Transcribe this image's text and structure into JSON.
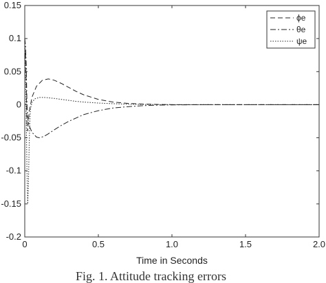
{
  "chart_data": {
    "type": "line",
    "title": "",
    "xlabel": "Time in Seconds",
    "ylabel": "",
    "xlim": [
      0,
      2
    ],
    "ylim": [
      -0.2,
      0.15
    ],
    "xticks": [
      "0",
      "0.5",
      "1.0",
      "1.5",
      "2.0"
    ],
    "yticks": [
      "0.15",
      "0.1",
      "0.05",
      "0",
      "-0.05",
      "-0.1",
      "-0.15",
      "-0.2"
    ],
    "grid": false,
    "legend_position": "top-right",
    "series": [
      {
        "name": "ϕe",
        "style": "dashed",
        "x": [
          0,
          0.005,
          0.01,
          0.015,
          0.02,
          0.03,
          0.05,
          0.08,
          0.12,
          0.16,
          0.2,
          0.25,
          0.3,
          0.35,
          0.4,
          0.5,
          0.6,
          0.7,
          0.8,
          0.9,
          1.0,
          1.2,
          1.5,
          2.0
        ],
        "y": [
          0.07,
          0.08,
          0.03,
          -0.03,
          -0.04,
          -0.01,
          0.012,
          0.028,
          0.037,
          0.039,
          0.037,
          0.032,
          0.026,
          0.02,
          0.015,
          0.008,
          0.004,
          0.002,
          0.001,
          0.0004,
          0.0001,
          0,
          0,
          0
        ]
      },
      {
        "name": "θe",
        "style": "dashdot",
        "x": [
          0,
          0.005,
          0.01,
          0.015,
          0.02,
          0.03,
          0.05,
          0.08,
          0.1,
          0.13,
          0.16,
          0.2,
          0.25,
          0.3,
          0.35,
          0.4,
          0.5,
          0.6,
          0.7,
          0.8,
          0.9,
          1.0,
          1.2,
          1.5,
          2.0
        ],
        "y": [
          0.1,
          0.09,
          0.06,
          0.0,
          -0.02,
          -0.032,
          -0.042,
          -0.049,
          -0.05,
          -0.048,
          -0.044,
          -0.038,
          -0.031,
          -0.025,
          -0.02,
          -0.015,
          -0.009,
          -0.005,
          -0.003,
          -0.0015,
          -0.0007,
          -0.0003,
          0,
          0,
          0
        ]
      },
      {
        "name": "ψe",
        "style": "dotted",
        "x": [
          0,
          0.005,
          0.01,
          0.015,
          0.02,
          0.025,
          0.03,
          0.035,
          0.04,
          0.05,
          0.07,
          0.1,
          0.13,
          0.16,
          0.2,
          0.25,
          0.3,
          0.35,
          0.4,
          0.5,
          0.6,
          0.7,
          0.8,
          1.0,
          1.5,
          2.0
        ],
        "y": [
          0.1,
          0.06,
          -0.02,
          -0.1,
          -0.15,
          -0.12,
          -0.06,
          -0.02,
          -0.005,
          0.004,
          0.009,
          0.011,
          0.011,
          0.0105,
          0.0095,
          0.008,
          0.0065,
          0.005,
          0.004,
          0.0025,
          0.0015,
          0.0008,
          0.0004,
          0.0001,
          0,
          0
        ]
      }
    ]
  },
  "caption": "Fig. 1.   Attitude tracking errors"
}
